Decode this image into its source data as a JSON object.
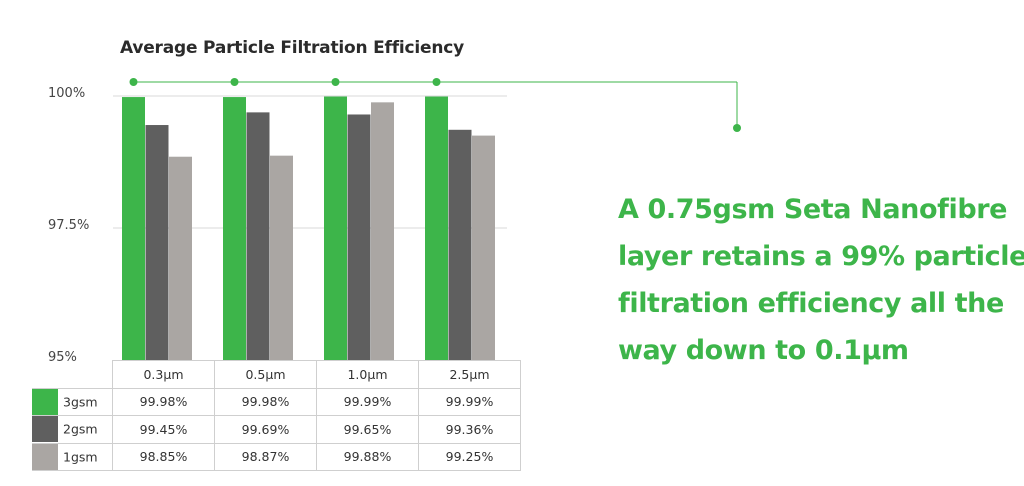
{
  "chart_data": {
    "type": "bar",
    "title": "Average Particle Filtration Efficiency",
    "categories": [
      "0.3µm",
      "0.5µm",
      "1.0µm",
      "2.5µm"
    ],
    "y_tick_labels": [
      "100%",
      "97.5%",
      "95%"
    ],
    "ylim": [
      95,
      100
    ],
    "grid": true,
    "series": [
      {
        "name": "3gsm",
        "color": "#3db54a",
        "values": [
          99.98,
          99.98,
          99.99,
          99.99
        ],
        "labels": [
          "99.98%",
          "99.98%",
          "99.99%",
          "99.99%"
        ]
      },
      {
        "name": "2gsm",
        "color": "#5f5f5f",
        "values": [
          99.45,
          99.69,
          99.65,
          99.36
        ],
        "labels": [
          "99.45%",
          "99.69%",
          "99.65%",
          "99.36%"
        ]
      },
      {
        "name": "1gsm",
        "color": "#aaa6a3",
        "values": [
          98.85,
          98.87,
          99.88,
          99.25
        ],
        "labels": [
          "98.85%",
          "98.87%",
          "99.88%",
          "99.25%"
        ]
      }
    ]
  },
  "callout": {
    "lines": [
      "A 0.75gsm Seta Nanofibre",
      "layer retains a 99% particle",
      "filtration efficiency all the",
      "way down to 0.1µm"
    ],
    "color": "#3db54a"
  }
}
